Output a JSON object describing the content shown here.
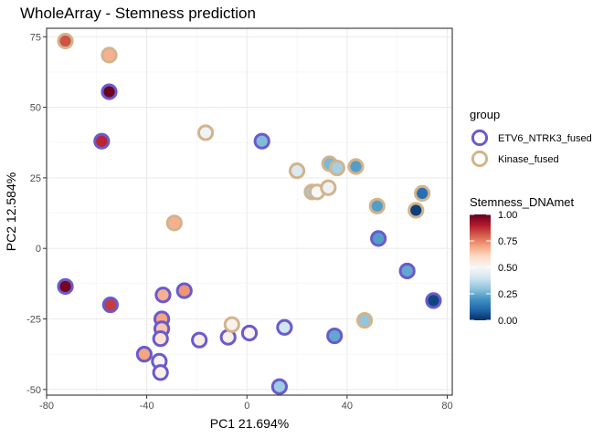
{
  "chart_data": {
    "type": "scatter",
    "title": "WholeArray - Stemness prediction",
    "xlabel": "PC1 21.694%",
    "ylabel": "PC2 12.584%",
    "xlim": [
      -80,
      82
    ],
    "ylim": [
      -52,
      78
    ],
    "x_ticks": [
      -80,
      -40,
      0,
      40,
      80
    ],
    "y_ticks": [
      -50,
      -25,
      0,
      25,
      50,
      75
    ],
    "grid": true,
    "legend_group": {
      "title": "group",
      "items": [
        {
          "label": "ETV6_NTRK3_fused",
          "color": "#6a5acd"
        },
        {
          "label": "Kinase_fused",
          "color": "#d2b48c"
        }
      ]
    },
    "legend_color": {
      "title": "Stemness_DNAmet",
      "ticks": [
        "1.00",
        "0.75",
        "0.50",
        "0.25",
        "0.00"
      ],
      "tick_values": [
        1.0,
        0.75,
        0.5,
        0.25,
        0.0
      ],
      "colors": [
        "#053061",
        "#2166ac",
        "#4393c3",
        "#92c5de",
        "#d1e5f0",
        "#f7f7f7",
        "#fddbc7",
        "#f4a582",
        "#d6604d",
        "#b2182b",
        "#67001f"
      ]
    },
    "points": [
      {
        "x": -72.5,
        "y": 73.5,
        "group": "Kinase_fused",
        "stemness": 0.82
      },
      {
        "x": -55,
        "y": 68.5,
        "group": "Kinase_fused",
        "stemness": 0.68
      },
      {
        "x": -55,
        "y": 55.5,
        "group": "ETV6_NTRK3_fused",
        "stemness": 0.99
      },
      {
        "x": -58,
        "y": 38,
        "group": "ETV6_NTRK3_fused",
        "stemness": 0.88
      },
      {
        "x": -16.5,
        "y": 41,
        "group": "Kinase_fused",
        "stemness": 0.48
      },
      {
        "x": 6,
        "y": 38,
        "group": "ETV6_NTRK3_fused",
        "stemness": 0.28
      },
      {
        "x": -29,
        "y": 9,
        "group": "Kinase_fused",
        "stemness": 0.68
      },
      {
        "x": 20,
        "y": 27.5,
        "group": "Kinase_fused",
        "stemness": 0.42
      },
      {
        "x": 33,
        "y": 30,
        "group": "Kinase_fused",
        "stemness": 0.27
      },
      {
        "x": 36,
        "y": 28.5,
        "group": "Kinase_fused",
        "stemness": 0.33
      },
      {
        "x": 43.5,
        "y": 29,
        "group": "Kinase_fused",
        "stemness": 0.22
      },
      {
        "x": 26,
        "y": 20,
        "group": "Kinase_fused",
        "stemness": 0.32
      },
      {
        "x": 28,
        "y": 20,
        "group": "Kinase_fused",
        "stemness": 0.5
      },
      {
        "x": 32.5,
        "y": 21.5,
        "group": "Kinase_fused",
        "stemness": 0.48
      },
      {
        "x": 52,
        "y": 15,
        "group": "Kinase_fused",
        "stemness": 0.22
      },
      {
        "x": 70,
        "y": 19.5,
        "group": "Kinase_fused",
        "stemness": 0.12
      },
      {
        "x": 67.5,
        "y": 13.5,
        "group": "Kinase_fused",
        "stemness": 0.03
      },
      {
        "x": 52.5,
        "y": 3.5,
        "group": "ETV6_NTRK3_fused",
        "stemness": 0.22
      },
      {
        "x": 64,
        "y": -8,
        "group": "ETV6_NTRK3_fused",
        "stemness": 0.24
      },
      {
        "x": 74.5,
        "y": -18.5,
        "group": "ETV6_NTRK3_fused",
        "stemness": 0.04
      },
      {
        "x": -72.5,
        "y": -13.5,
        "group": "ETV6_NTRK3_fused",
        "stemness": 0.98
      },
      {
        "x": -54.5,
        "y": -20,
        "group": "ETV6_NTRK3_fused",
        "stemness": 0.85
      },
      {
        "x": -33.5,
        "y": -16.5,
        "group": "ETV6_NTRK3_fused",
        "stemness": 0.68
      },
      {
        "x": -25,
        "y": -15,
        "group": "ETV6_NTRK3_fused",
        "stemness": 0.72
      },
      {
        "x": -34,
        "y": -25,
        "group": "ETV6_NTRK3_fused",
        "stemness": 0.7
      },
      {
        "x": -34,
        "y": -28.5,
        "group": "ETV6_NTRK3_fused",
        "stemness": 0.64
      },
      {
        "x": -34.5,
        "y": -32,
        "group": "ETV6_NTRK3_fused",
        "stemness": 0.58
      },
      {
        "x": -41,
        "y": -37.5,
        "group": "ETV6_NTRK3_fused",
        "stemness": 0.7
      },
      {
        "x": -35,
        "y": -40,
        "group": "ETV6_NTRK3_fused",
        "stemness": 0.52
      },
      {
        "x": -34.5,
        "y": -44,
        "group": "ETV6_NTRK3_fused",
        "stemness": 0.53
      },
      {
        "x": -19,
        "y": -32.5,
        "group": "ETV6_NTRK3_fused",
        "stemness": 0.54
      },
      {
        "x": -7.5,
        "y": -31.5,
        "group": "ETV6_NTRK3_fused",
        "stemness": 0.53
      },
      {
        "x": -6,
        "y": -27,
        "group": "Kinase_fused",
        "stemness": 0.52
      },
      {
        "x": 1,
        "y": -30,
        "group": "ETV6_NTRK3_fused",
        "stemness": 0.51
      },
      {
        "x": 15,
        "y": -28,
        "group": "ETV6_NTRK3_fused",
        "stemness": 0.4
      },
      {
        "x": 35,
        "y": -31,
        "group": "ETV6_NTRK3_fused",
        "stemness": 0.24
      },
      {
        "x": 47,
        "y": -25.5,
        "group": "Kinase_fused",
        "stemness": 0.3
      },
      {
        "x": 13,
        "y": -49,
        "group": "ETV6_NTRK3_fused",
        "stemness": 0.32
      }
    ]
  }
}
